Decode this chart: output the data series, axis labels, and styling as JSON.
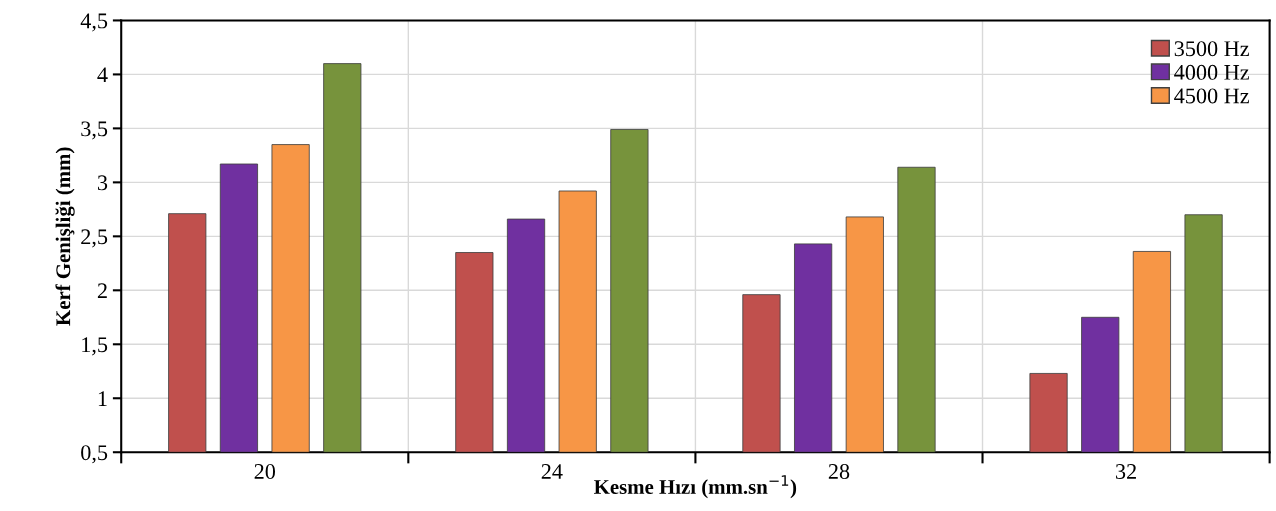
{
  "chart_data": {
    "type": "bar",
    "xlabel": "Kesme Hızı (mm.sn$^{−1}$)",
    "ylabel": "Kerf Genişliği (mm)",
    "categories": [
      "20",
      "24",
      "28",
      "32"
    ],
    "series": [
      {
        "name": "3500 Hz",
        "color": "#c0504d",
        "values": [
          2.71,
          2.35,
          1.96,
          1.23
        ]
      },
      {
        "name": "4000 Hz",
        "color": "#7030a0",
        "values": [
          3.17,
          2.66,
          2.43,
          1.75
        ]
      },
      {
        "name": "4500 Hz",
        "color": "#f79646",
        "values": [
          3.35,
          2.92,
          2.68,
          2.36
        ]
      },
      {
        "color": "#77933c",
        "values": [
          4.1,
          3.49,
          3.14,
          2.7
        ]
      }
    ],
    "ylim": [
      0.5,
      4.5
    ],
    "yticks": [
      {
        "value": 0.5,
        "label": "0,5"
      },
      1,
      {
        "value": 1.5,
        "label": "1,5"
      },
      2,
      {
        "value": 2.5,
        "label": "2,5"
      },
      3,
      {
        "value": 3.5,
        "label": "3,5"
      },
      4,
      {
        "value": 4.5,
        "label": "4,5"
      }
    ],
    "grid": true,
    "legend": "top right"
  }
}
